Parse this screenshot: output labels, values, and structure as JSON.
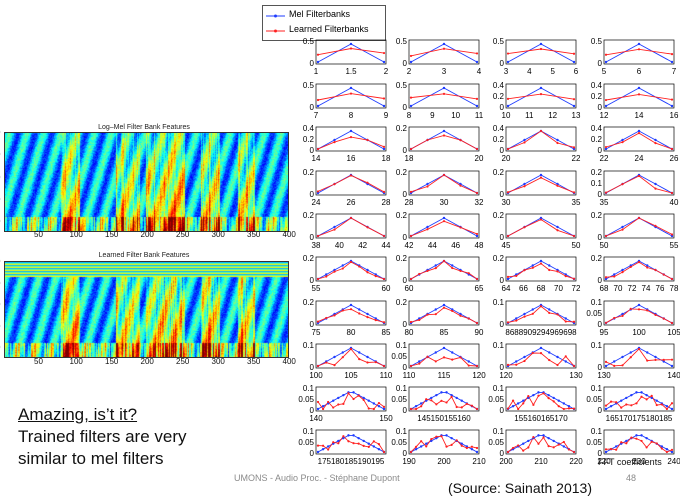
{
  "caption": {
    "line1": "Amazing, is’t it?",
    "line2": "Trained filters are very",
    "line3": "similar to mel filters"
  },
  "footer": {
    "center": "UMONS - Audio Proc. - Stéphane Dupont",
    "page": "48",
    "source": "(Source: Sainath 2013)"
  },
  "heatmaps": [
    {
      "title": "Log–Mel Filter Bank Features",
      "xticks": [
        "50",
        "100",
        "150",
        "200",
        "250",
        "300",
        "350",
        "400"
      ],
      "yticks": [
        "0",
        "0",
        "0",
        "0",
        "0"
      ]
    },
    {
      "title": "Learned Filter Bank Features",
      "xticks": [
        "50",
        "100",
        "150",
        "200",
        "250",
        "300",
        "350",
        "400"
      ],
      "yticks": [
        "0",
        "0",
        "0",
        "0",
        "0"
      ]
    }
  ],
  "legend": {
    "mel": "Mel Filterbanks",
    "learned": "Learned Filterbanks"
  },
  "colors": {
    "mel": "#1f3cff",
    "learned": "#ff2020"
  },
  "fft_label": "FFT coefficients",
  "chart_data": {
    "type": "line",
    "series_names": [
      "Mel Filterbanks",
      "Learned Filterbanks"
    ],
    "panels": [
      {
        "xt": [
          "1",
          "1.5",
          "2"
        ],
        "yt": [
          "0.5",
          "0"
        ]
      },
      {
        "xt": [
          "2",
          "3",
          "4"
        ],
        "yt": [
          "0.5",
          "0"
        ]
      },
      {
        "xt": [
          "3",
          "4",
          "5",
          "6"
        ],
        "yt": [
          "0.5",
          "0"
        ]
      },
      {
        "xt": [
          "5",
          "6",
          "7"
        ],
        "yt": [
          "0.5",
          "0"
        ]
      },
      {
        "xt": [
          "7",
          "8",
          "9"
        ],
        "yt": [
          "0.5",
          "0"
        ]
      },
      {
        "xt": [
          "8",
          "9",
          "10",
          "11"
        ],
        "yt": [
          "0.5",
          "0"
        ]
      },
      {
        "xt": [
          "10",
          "11",
          "12",
          "13"
        ],
        "yt": [
          "0.4",
          "0.2",
          "0"
        ]
      },
      {
        "xt": [
          "12",
          "14",
          "16"
        ],
        "yt": [
          "0.4",
          "0.2",
          "0"
        ]
      },
      {
        "xt": [
          "14",
          "16",
          "18"
        ],
        "yt": [
          "0.4",
          "0.2",
          "0"
        ]
      },
      {
        "xt": [
          "18",
          "20"
        ],
        "yt": [
          "0.2",
          "0"
        ]
      },
      {
        "xt": [
          "20",
          "22"
        ],
        "yt": [
          "0.4",
          "0.2",
          "0"
        ]
      },
      {
        "xt": [
          "22",
          "24",
          "26"
        ],
        "yt": [
          "0.4",
          "0.2",
          "0"
        ]
      },
      {
        "xt": [
          "24",
          "26",
          "28"
        ],
        "yt": [
          "0.2",
          "0"
        ]
      },
      {
        "xt": [
          "28",
          "30",
          "32"
        ],
        "yt": [
          "0.2",
          "0"
        ]
      },
      {
        "xt": [
          "30",
          "35"
        ],
        "yt": [
          "0.2",
          "0"
        ]
      },
      {
        "xt": [
          "35",
          "40"
        ],
        "yt": [
          "0.2",
          "0.1",
          "0"
        ]
      },
      {
        "xt": [
          "38",
          "40",
          "42",
          "44"
        ],
        "yt": [
          "0.2",
          "0"
        ]
      },
      {
        "xt": [
          "42",
          "44",
          "46",
          "48"
        ],
        "yt": [
          "0.2",
          "0"
        ]
      },
      {
        "xt": [
          "45",
          "50"
        ],
        "yt": [
          "0.2",
          "0"
        ]
      },
      {
        "xt": [
          "50",
          "55"
        ],
        "yt": [
          "0.2",
          "0"
        ]
      },
      {
        "xt": [
          "55",
          "60"
        ],
        "yt": [
          "0.2",
          "0"
        ]
      },
      {
        "xt": [
          "60",
          "65"
        ],
        "yt": [
          "0.2",
          "0"
        ]
      },
      {
        "xt": [
          "64",
          "66",
          "68",
          "70",
          "72"
        ],
        "yt": [
          "0.2",
          "0"
        ]
      },
      {
        "xt": [
          "68",
          "70",
          "72",
          "74",
          "76",
          "78"
        ],
        "yt": [
          "0.2",
          "0"
        ]
      },
      {
        "xt": [
          "75",
          "80",
          "85"
        ],
        "yt": [
          "0.2",
          "0"
        ]
      },
      {
        "xt": [
          "80",
          "85",
          "90"
        ],
        "yt": [
          "0.2",
          "0"
        ]
      },
      {
        "xt": [
          "8688909294969698"
        ],
        "yt": [
          "0.1",
          "0"
        ]
      },
      {
        "xt": [
          "95",
          "100",
          "105"
        ],
        "yt": [
          "0.1",
          "0.05",
          "0"
        ]
      },
      {
        "xt": [
          "100",
          "105",
          "110"
        ],
        "yt": [
          "0.1",
          "0"
        ]
      },
      {
        "xt": [
          "110",
          "115",
          "120"
        ],
        "yt": [
          "0.1",
          "0.05",
          "0"
        ]
      },
      {
        "xt": [
          "120",
          "130"
        ],
        "yt": [
          "0.1",
          "0"
        ]
      },
      {
        "xt": [
          "130",
          "140"
        ],
        "yt": [
          "0.1",
          "0"
        ]
      },
      {
        "xt": [
          "140",
          "150"
        ],
        "yt": [
          "0.1",
          "0.05",
          "0"
        ]
      },
      {
        "xt": [
          "145150155160"
        ],
        "yt": [
          "0.1",
          "0.05",
          "0"
        ]
      },
      {
        "xt": [
          "155160165170"
        ],
        "yt": [
          "0.1",
          "0.05",
          "0"
        ]
      },
      {
        "xt": [
          "165170175180185"
        ],
        "yt": [
          "0.1",
          "0.05",
          "0"
        ]
      },
      {
        "xt": [
          "175180185190195"
        ],
        "yt": [
          "0.1",
          "0.05",
          "0"
        ]
      },
      {
        "xt": [
          "190",
          "200",
          "210"
        ],
        "yt": [
          "0.1",
          "0.05",
          "0"
        ]
      },
      {
        "xt": [
          "200",
          "210",
          "220"
        ],
        "yt": [
          "0.1",
          "0.05",
          "0"
        ]
      },
      {
        "xt": [
          "220",
          "230",
          "240"
        ],
        "yt": [
          "0.1",
          "0.05",
          "0"
        ]
      }
    ]
  }
}
